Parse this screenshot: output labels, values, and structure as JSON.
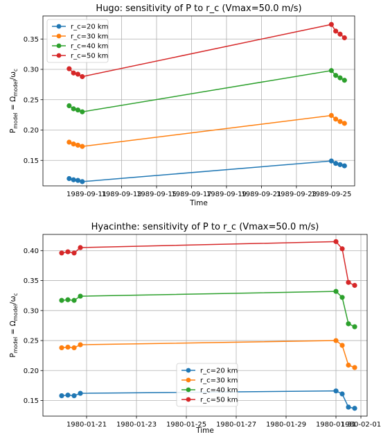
{
  "chart_data": [
    {
      "type": "line",
      "title": "Hugo: sensitivity of P to r_c (Vmax=50.0 m/s)",
      "xlabel": "Time",
      "ylabel_main": "P",
      "ylabel_main_sub": "model",
      "ylabel_eq": " = Ω",
      "ylabel_eq_sub": "model",
      "ylabel_div": "/ω",
      "ylabel_div_sub": "c",
      "x_type": "date",
      "xlim": [
        "1989-09-08T12:00",
        "1989-09-26T08:00"
      ],
      "ylim": [
        0.108,
        0.388
      ],
      "grid": true,
      "legend_position": "upper left",
      "xticks": [
        "1989-09-11",
        "1989-09-13",
        "1989-09-15",
        "1989-09-17",
        "1989-09-19",
        "1989-09-21",
        "1989-09-23",
        "1989-09-25"
      ],
      "yticks": [
        0.15,
        0.2,
        0.25,
        0.3,
        0.35
      ],
      "x": [
        "1989-09-10T00:00",
        "1989-09-10T06:00",
        "1989-09-10T12:00",
        "1989-09-10T18:00",
        "1989-09-25T00:00",
        "1989-09-25T06:00",
        "1989-09-25T12:00",
        "1989-09-25T18:00"
      ],
      "series": [
        {
          "name": "r_c=20 km",
          "color": "#1f77b4",
          "values": [
            0.12,
            0.118,
            0.117,
            0.115,
            0.149,
            0.145,
            0.143,
            0.141
          ]
        },
        {
          "name": "r_c=30 km",
          "color": "#ff7f0e",
          "values": [
            0.18,
            0.177,
            0.175,
            0.173,
            0.224,
            0.218,
            0.214,
            0.211
          ]
        },
        {
          "name": "r_c=40 km",
          "color": "#2ca02c",
          "values": [
            0.24,
            0.235,
            0.233,
            0.23,
            0.298,
            0.29,
            0.286,
            0.282
          ]
        },
        {
          "name": "r_c=50 km",
          "color": "#d62728",
          "values": [
            0.301,
            0.294,
            0.292,
            0.288,
            0.374,
            0.363,
            0.358,
            0.352
          ]
        }
      ]
    },
    {
      "type": "line",
      "title": "Hyacinthe: sensitivity of P to r_c (Vmax=50.0 m/s)",
      "xlabel": "Time",
      "ylabel_main": "P",
      "ylabel_main_sub": "model",
      "ylabel_eq": " = Ω",
      "ylabel_eq_sub": "model",
      "ylabel_div": "/ω",
      "ylabel_div_sub": "c",
      "x_type": "date",
      "xlim": [
        "1980-01-19T06:00",
        "1980-02-01T06:00"
      ],
      "ylim": [
        0.124,
        0.427
      ],
      "grid": true,
      "legend_position": "lower center",
      "xticks": [
        "1980-01-21",
        "1980-01-23",
        "1980-01-25",
        "1980-01-27",
        "1980-01-29",
        "1980-01-31",
        "1980-02-01"
      ],
      "yticks": [
        0.15,
        0.2,
        0.25,
        0.3,
        0.35,
        0.4
      ],
      "x": [
        "1980-01-20T00:00",
        "1980-01-20T06:00",
        "1980-01-20T12:00",
        "1980-01-20T18:00",
        "1980-01-31T00:00",
        "1980-01-31T06:00",
        "1980-01-31T12:00",
        "1980-01-31T18:00"
      ],
      "series": [
        {
          "name": "r_c=20 km",
          "color": "#1f77b4",
          "values": [
            0.158,
            0.159,
            0.158,
            0.162,
            0.166,
            0.161,
            0.139,
            0.137
          ]
        },
        {
          "name": "r_c=30 km",
          "color": "#ff7f0e",
          "values": [
            0.238,
            0.239,
            0.238,
            0.243,
            0.25,
            0.242,
            0.209,
            0.205
          ]
        },
        {
          "name": "r_c=40 km",
          "color": "#2ca02c",
          "values": [
            0.317,
            0.318,
            0.317,
            0.324,
            0.332,
            0.322,
            0.278,
            0.273
          ]
        },
        {
          "name": "r_c=50 km",
          "color": "#d62728",
          "values": [
            0.396,
            0.398,
            0.396,
            0.405,
            0.415,
            0.403,
            0.347,
            0.342
          ]
        }
      ]
    }
  ]
}
